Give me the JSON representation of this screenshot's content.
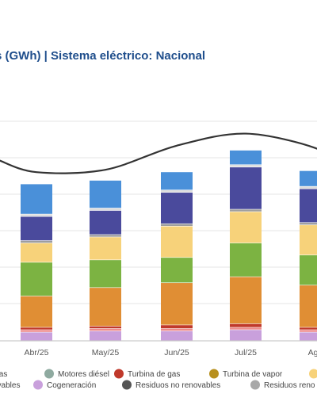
{
  "title": "s (GWh) | Sistema eléctrico: Nacional",
  "chart_data": {
    "type": "bar",
    "stacked": true,
    "categories": [
      "Abr/25",
      "May/25",
      "Jun/25",
      "Jul/25",
      "Ago"
    ],
    "grid": true,
    "series": [
      {
        "color": "#c9a0dc",
        "values": [
          7,
          8,
          8,
          9,
          7
        ]
      },
      {
        "color": "#ee8b8b",
        "values": [
          2,
          2,
          2,
          2,
          2
        ]
      },
      {
        "color": "#c0392b",
        "values": [
          2,
          2,
          3,
          3,
          2
        ]
      },
      {
        "color": "#e08e34",
        "values": [
          26,
          32,
          35,
          39,
          35
        ]
      },
      {
        "color": "#7cb342",
        "values": [
          28,
          23,
          21,
          28,
          25
        ]
      },
      {
        "color": "#f7d27a",
        "values": [
          16,
          19,
          26,
          26,
          25
        ]
      },
      {
        "color": "#9e9e9e",
        "values": [
          2,
          2,
          2,
          2,
          2
        ]
      },
      {
        "color": "#4a4a9c",
        "values": [
          20,
          20,
          26,
          35,
          28
        ]
      },
      {
        "color": "#dddddd",
        "values": [
          2,
          2,
          2,
          2,
          2
        ]
      },
      {
        "color": "#4a90d9",
        "values": [
          25,
          23,
          15,
          12,
          13
        ]
      }
    ],
    "line": {
      "color": "#333333",
      "values": [
        140,
        142,
        162,
        172,
        160
      ]
    }
  },
  "legend": [
    {
      "label": "Gas",
      "color": "#4a90d9"
    },
    {
      "label": "Motores diésel",
      "color": "#8faaa0"
    },
    {
      "label": "Turbina de gas",
      "color": "#c0392b"
    },
    {
      "label": "Turbina de vapor",
      "color": "#b8901e"
    },
    {
      "label": "",
      "color": "#f7d27a"
    },
    {
      "label": "ovables",
      "color": "#b0b0b0"
    },
    {
      "label": "Cogeneración",
      "color": "#c9a0dc"
    },
    {
      "label": "Residuos no renovables",
      "color": "#555555"
    },
    {
      "label": "Residuos reno",
      "color": "#a8a8a8"
    }
  ]
}
